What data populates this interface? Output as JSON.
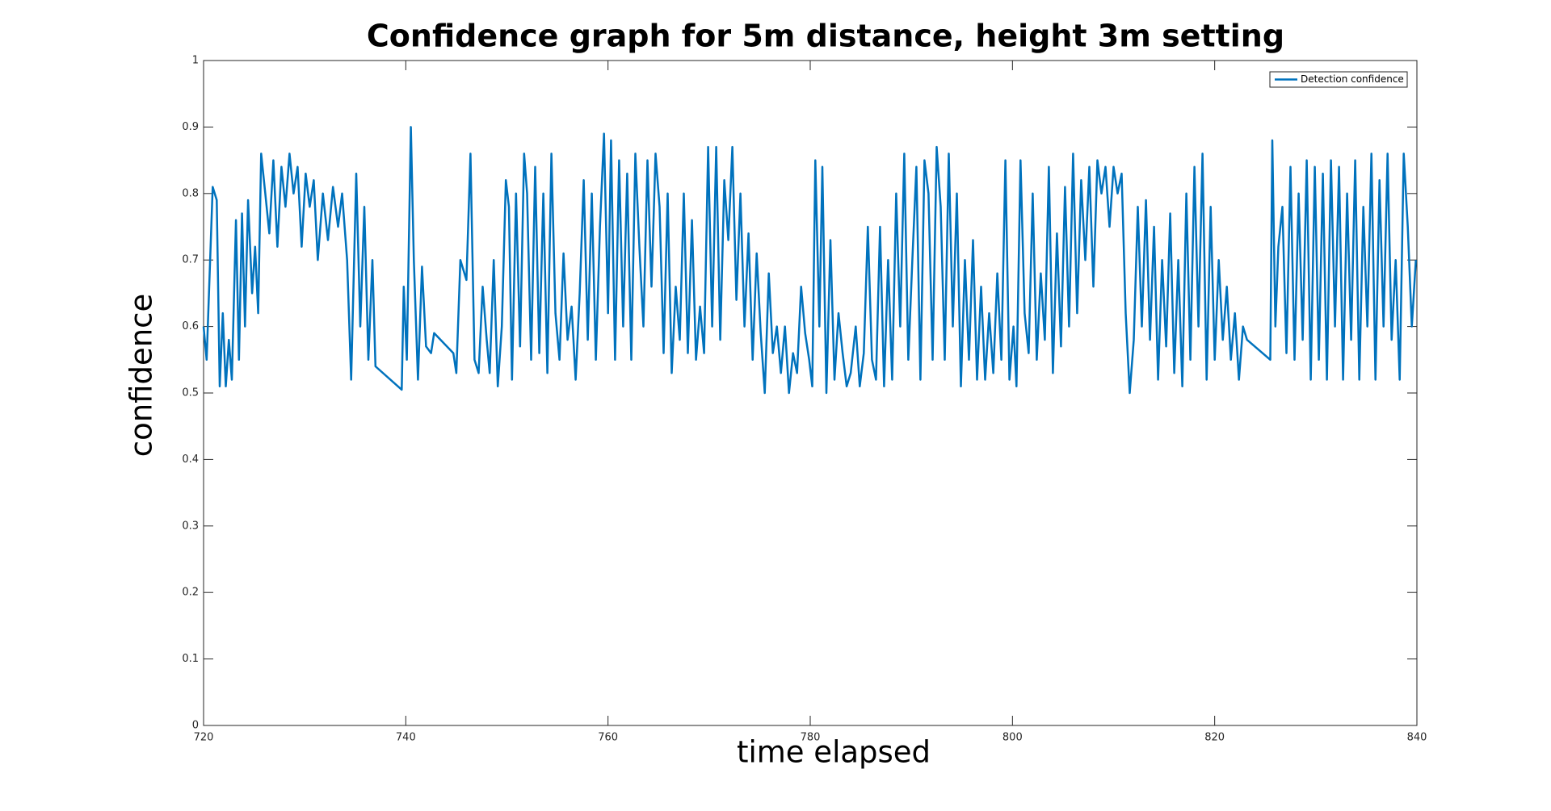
{
  "chart_data": {
    "type": "line",
    "title": "Confidence graph for 5m distance, height 3m setting",
    "x_label": "time elapsed",
    "y_label": "confidence",
    "xlim": [
      720,
      840
    ],
    "xticks": [
      720,
      740,
      760,
      780,
      800,
      820,
      840
    ],
    "ylim": [
      0,
      1
    ],
    "yticks": [
      0,
      0.1,
      0.2,
      0.3,
      0.4,
      0.5,
      0.6,
      0.7,
      0.8,
      0.9,
      1
    ],
    "legend": "top-right",
    "x": [
      720,
      720.3,
      720.9,
      721.3,
      721.6,
      721.9,
      722.2,
      722.5,
      722.8,
      723.2,
      723.5,
      723.8,
      724.1,
      724.4,
      724.8,
      725.1,
      725.4,
      725.7,
      726.1,
      726.5,
      726.9,
      727.3,
      727.7,
      728.1,
      728.5,
      728.9,
      729.3,
      729.7,
      730.1,
      730.5,
      730.9,
      731.3,
      731.8,
      732.3,
      732.8,
      733.3,
      733.7,
      734.2,
      734.6,
      735.1,
      735.5,
      735.9,
      736.3,
      736.7,
      737,
      739.6,
      739.8,
      740.1,
      740.5,
      740.8,
      741.2,
      741.6,
      742,
      742.5,
      742.8,
      744.7,
      745,
      745.4,
      746,
      746.4,
      746.8,
      747.2,
      747.6,
      748,
      748.3,
      748.7,
      749.1,
      749.5,
      749.9,
      750.2,
      750.5,
      750.9,
      751.3,
      751.7,
      752,
      752.4,
      752.8,
      753.2,
      753.6,
      754,
      754.4,
      754.8,
      755.2,
      755.6,
      756,
      756.4,
      756.8,
      757.2,
      757.6,
      758,
      758.4,
      758.8,
      759.2,
      759.6,
      760,
      760.3,
      760.7,
      761.1,
      761.5,
      761.9,
      762.3,
      762.7,
      763.1,
      763.5,
      763.9,
      764.3,
      764.7,
      765.1,
      765.5,
      765.9,
      766.3,
      766.7,
      767.1,
      767.5,
      767.9,
      768.3,
      768.7,
      769.1,
      769.5,
      769.9,
      770.3,
      770.7,
      771.1,
      771.5,
      771.9,
      772.3,
      772.7,
      773.1,
      773.5,
      773.9,
      774.3,
      774.7,
      775.1,
      775.5,
      775.9,
      776.3,
      776.7,
      777.1,
      777.5,
      777.9,
      778.3,
      778.7,
      779.1,
      779.5,
      779.9,
      780.2,
      780.5,
      780.9,
      781.2,
      781.6,
      782,
      782.4,
      782.8,
      783.2,
      783.6,
      784,
      784.5,
      784.9,
      785.3,
      785.7,
      786.1,
      786.5,
      786.9,
      787.3,
      787.7,
      788.1,
      788.5,
      788.9,
      789.3,
      789.7,
      790.1,
      790.5,
      790.9,
      791.3,
      791.7,
      792.1,
      792.5,
      792.9,
      793.3,
      793.7,
      794.1,
      794.5,
      794.9,
      795.3,
      795.7,
      796.1,
      796.5,
      796.9,
      797.3,
      797.7,
      798.1,
      798.5,
      798.9,
      799.3,
      799.7,
      800.1,
      800.4,
      800.8,
      801.2,
      801.6,
      802,
      802.4,
      802.8,
      803.2,
      803.6,
      804,
      804.4,
      804.8,
      805.2,
      805.6,
      806,
      806.4,
      806.8,
      807.2,
      807.6,
      808,
      808.4,
      808.8,
      809.2,
      809.6,
      810,
      810.4,
      810.8,
      811.2,
      811.6,
      812,
      812.4,
      812.8,
      813.2,
      813.6,
      814,
      814.4,
      814.8,
      815.2,
      815.6,
      816,
      816.4,
      816.8,
      817.2,
      817.6,
      818,
      818.4,
      818.8,
      819.2,
      819.6,
      820,
      820.4,
      820.8,
      821.2,
      821.6,
      822,
      822.4,
      822.8,
      823.2,
      825.5,
      825.7,
      826,
      826.3,
      826.7,
      827.1,
      827.5,
      827.9,
      828.3,
      828.7,
      829.1,
      829.5,
      829.9,
      830.3,
      830.7,
      831.1,
      831.5,
      831.9,
      832.3,
      832.7,
      833.1,
      833.5,
      833.9,
      834.3,
      834.7,
      835.1,
      835.5,
      835.9,
      836.3,
      836.7,
      837.1,
      837.5,
      837.9,
      838.3,
      838.7,
      839.1,
      839.5,
      839.9
    ],
    "series": [
      {
        "name": "Detection confidence",
        "color": "#0072bd",
        "values": [
          0.6,
          0.55,
          0.81,
          0.79,
          0.51,
          0.62,
          0.51,
          0.58,
          0.52,
          0.76,
          0.55,
          0.77,
          0.6,
          0.79,
          0.65,
          0.72,
          0.62,
          0.86,
          0.8,
          0.74,
          0.85,
          0.72,
          0.84,
          0.78,
          0.86,
          0.8,
          0.84,
          0.72,
          0.83,
          0.78,
          0.82,
          0.7,
          0.8,
          0.73,
          0.81,
          0.75,
          0.8,
          0.7,
          0.52,
          0.83,
          0.6,
          0.78,
          0.55,
          0.7,
          0.54,
          0.505,
          0.66,
          0.55,
          0.9,
          0.7,
          0.52,
          0.69,
          0.57,
          0.56,
          0.59,
          0.56,
          0.53,
          0.7,
          0.67,
          0.86,
          0.55,
          0.53,
          0.66,
          0.58,
          0.53,
          0.7,
          0.51,
          0.6,
          0.82,
          0.78,
          0.52,
          0.8,
          0.57,
          0.86,
          0.8,
          0.55,
          0.84,
          0.56,
          0.8,
          0.53,
          0.86,
          0.62,
          0.55,
          0.71,
          0.58,
          0.63,
          0.52,
          0.65,
          0.82,
          0.58,
          0.8,
          0.55,
          0.75,
          0.89,
          0.62,
          0.88,
          0.55,
          0.85,
          0.6,
          0.83,
          0.55,
          0.86,
          0.72,
          0.6,
          0.85,
          0.66,
          0.86,
          0.78,
          0.56,
          0.8,
          0.53,
          0.66,
          0.58,
          0.8,
          0.56,
          0.76,
          0.55,
          0.63,
          0.56,
          0.87,
          0.6,
          0.87,
          0.58,
          0.82,
          0.73,
          0.87,
          0.64,
          0.8,
          0.6,
          0.74,
          0.55,
          0.71,
          0.59,
          0.5,
          0.68,
          0.56,
          0.6,
          0.53,
          0.6,
          0.5,
          0.56,
          0.53,
          0.66,
          0.59,
          0.55,
          0.51,
          0.85,
          0.6,
          0.84,
          0.5,
          0.73,
          0.52,
          0.62,
          0.56,
          0.51,
          0.53,
          0.6,
          0.51,
          0.56,
          0.75,
          0.55,
          0.52,
          0.75,
          0.51,
          0.7,
          0.52,
          0.8,
          0.6,
          0.86,
          0.55,
          0.7,
          0.84,
          0.52,
          0.85,
          0.8,
          0.55,
          0.87,
          0.78,
          0.55,
          0.86,
          0.6,
          0.8,
          0.51,
          0.7,
          0.55,
          0.73,
          0.52,
          0.66,
          0.52,
          0.62,
          0.53,
          0.68,
          0.55,
          0.85,
          0.52,
          0.6,
          0.51,
          0.85,
          0.62,
          0.56,
          0.8,
          0.55,
          0.68,
          0.58,
          0.84,
          0.53,
          0.74,
          0.57,
          0.81,
          0.6,
          0.86,
          0.62,
          0.82,
          0.7,
          0.84,
          0.66,
          0.85,
          0.8,
          0.84,
          0.75,
          0.84,
          0.8,
          0.83,
          0.62,
          0.5,
          0.58,
          0.78,
          0.6,
          0.79,
          0.58,
          0.75,
          0.52,
          0.7,
          0.57,
          0.77,
          0.53,
          0.7,
          0.51,
          0.8,
          0.55,
          0.84,
          0.6,
          0.86,
          0.52,
          0.78,
          0.55,
          0.7,
          0.58,
          0.66,
          0.55,
          0.62,
          0.52,
          0.6,
          0.58,
          0.55,
          0.88,
          0.6,
          0.72,
          0.78,
          0.56,
          0.84,
          0.55,
          0.8,
          0.58,
          0.85,
          0.52,
          0.84,
          0.55,
          0.83,
          0.52,
          0.85,
          0.6,
          0.84,
          0.52,
          0.8,
          0.58,
          0.85,
          0.52,
          0.78,
          0.6,
          0.86,
          0.52,
          0.82,
          0.6,
          0.86,
          0.58,
          0.7,
          0.52,
          0.86,
          0.75,
          0.6,
          0.7
        ]
      }
    ]
  }
}
